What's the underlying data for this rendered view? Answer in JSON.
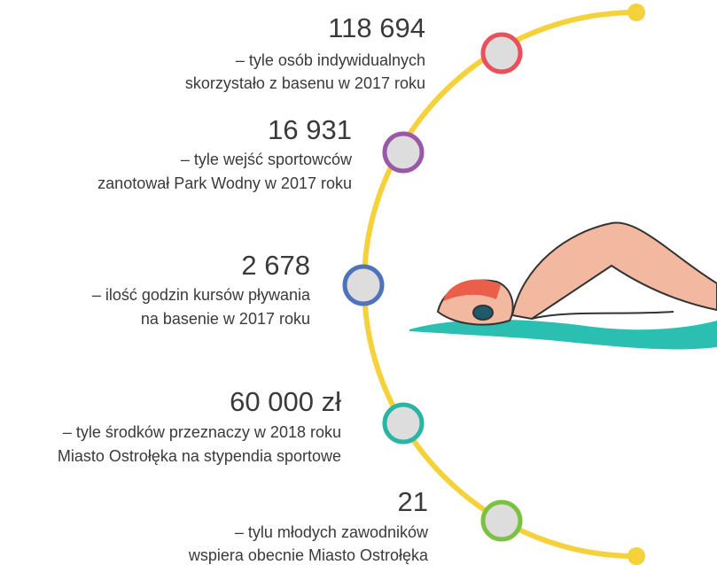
{
  "items": [
    {
      "number": "118 694",
      "lines": [
        "– tyle osób indywidualnych",
        "skorzystało z basenu w 2017 roku"
      ]
    },
    {
      "number": "16 931",
      "lines": [
        "– tyle wejść sportowców",
        "zanotował Park Wodny w 2017 roku"
      ]
    },
    {
      "number": "2 678",
      "lines": [
        "– ilość godzin kursów pływania",
        "na basenie w 2017 roku"
      ]
    },
    {
      "number": "60 000 zł",
      "lines": [
        "– tyle środków przeznaczy w 2018 roku",
        "Miasto Ostrołęka na stypendia sportowe"
      ]
    },
    {
      "number": "21",
      "lines": [
        "– tylu młodych zawodników",
        "wspiera obecnie Miasto Ostrołęka"
      ]
    }
  ]
}
